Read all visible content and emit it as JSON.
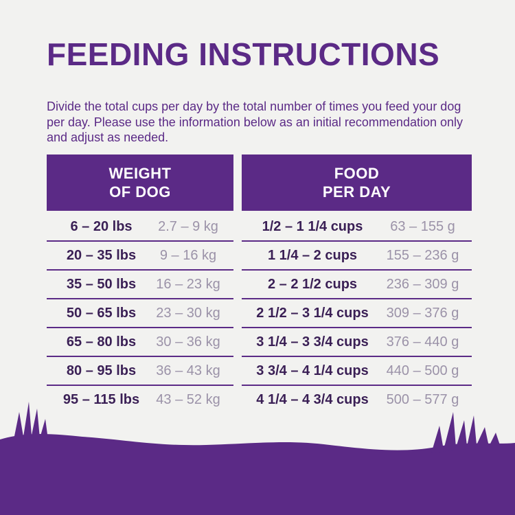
{
  "title": "FEEDING INSTRUCTIONS",
  "description": "Divide the total cups per day by the total number of times you feed your dog per day. Please use the information below as an initial recommendation only and adjust as needed.",
  "table": {
    "headers": [
      "WEIGHT\nOF DOG",
      "FOOD\nPER DAY"
    ],
    "rows": [
      [
        "6 – 20 lbs",
        "2.7 – 9 kg",
        "1/2 – 1 1/4 cups",
        "63 – 155 g"
      ],
      [
        "20 – 35 lbs",
        "9 – 16 kg",
        "1 1/4 – 2 cups",
        "155 – 236 g"
      ],
      [
        "35 – 50 lbs",
        "16 – 23 kg",
        "2 – 2 1/2 cups",
        "236 – 309 g"
      ],
      [
        "50 – 65 lbs",
        "23 – 30 kg",
        "2 1/2 – 3 1/4 cups",
        "309 – 376 g"
      ],
      [
        "65 – 80 lbs",
        "30 – 36 kg",
        "3 1/4 – 3 3/4 cups",
        "376 – 440 g"
      ],
      [
        "80 – 95 lbs",
        "36 – 43 kg",
        "3 3/4 – 4 1/4 cups",
        "440 – 500 g"
      ],
      [
        "95 – 115 lbs",
        "43 – 52 kg",
        "4 1/4 – 4 3/4 cups",
        "500 – 577 g"
      ]
    ]
  }
}
